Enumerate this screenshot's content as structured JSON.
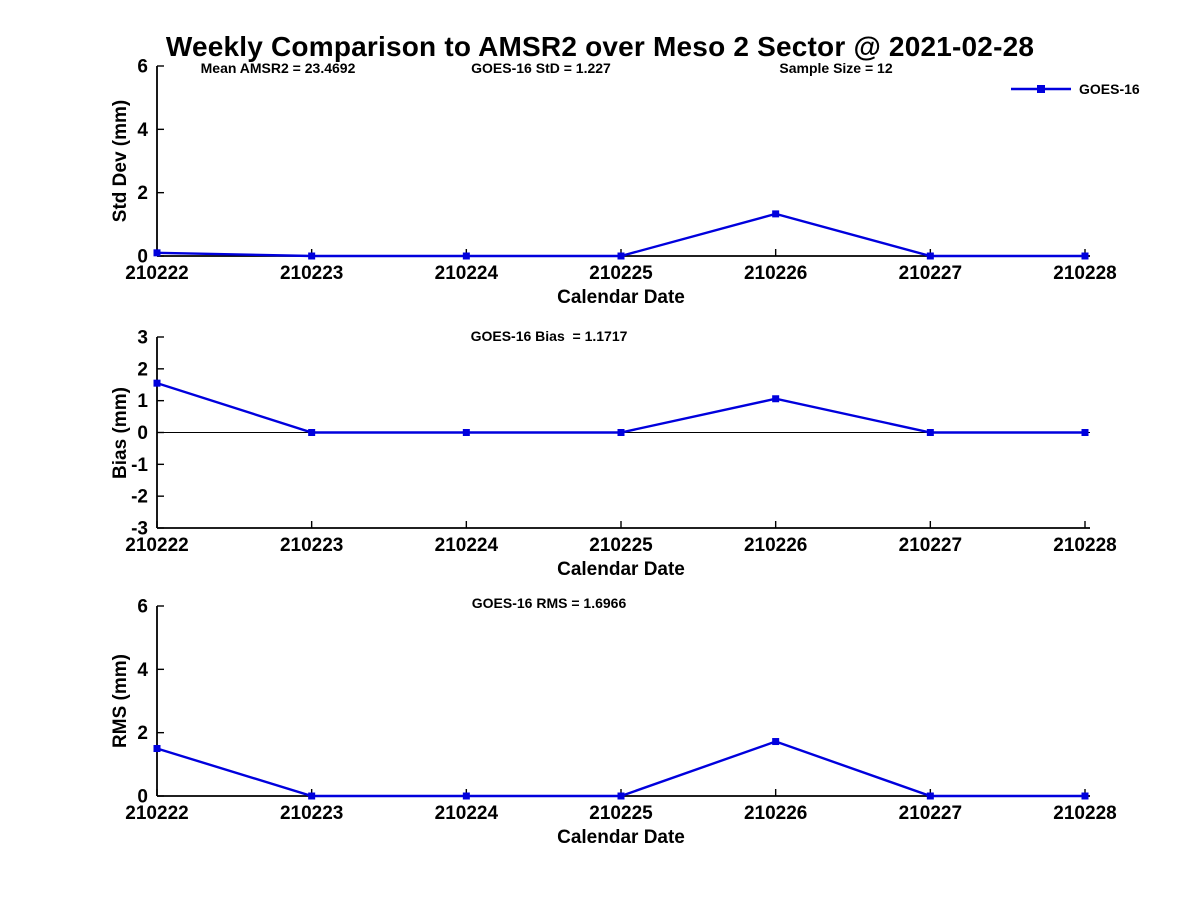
{
  "title": "Weekly Comparison to AMSR2 over Meso 2 Sector @ 2021-02-28",
  "annotations": {
    "mean_amsr2": "Mean AMSR2 = 23.4692",
    "goes16_std": "GOES-16 StD = 1.227",
    "sample_size": "Sample Size = 12",
    "goes16_bias": "GOES-16 Bias  = 1.1717",
    "goes16_rms": "GOES-16 RMS = 1.6966"
  },
  "legend": {
    "label": "GOES-16",
    "position": "top-right"
  },
  "colors": {
    "line": "#0000dd",
    "axis": "#000000",
    "text": "#000000",
    "background": "#ffffff"
  },
  "chart_data": [
    {
      "type": "line",
      "title": "",
      "categories": [
        "210222",
        "210223",
        "210224",
        "210225",
        "210226",
        "210227",
        "210228"
      ],
      "series": [
        {
          "name": "GOES-16",
          "values": [
            0.1,
            0,
            0,
            0,
            1.33,
            0,
            0
          ]
        }
      ],
      "xlabel": "Calendar Date",
      "ylabel": "Std Dev (mm)",
      "ylim": [
        0,
        6
      ],
      "yticks": [
        0,
        2,
        4,
        6
      ],
      "grid": false,
      "zero_line": false,
      "marker": "square",
      "legend_position": "top-right"
    },
    {
      "type": "line",
      "title": "",
      "categories": [
        "210222",
        "210223",
        "210224",
        "210225",
        "210226",
        "210227",
        "210228"
      ],
      "series": [
        {
          "name": "GOES-16",
          "values": [
            1.55,
            0,
            0,
            0,
            1.06,
            0,
            0
          ]
        }
      ],
      "xlabel": "Calendar Date",
      "ylabel": "Bias (mm)",
      "ylim": [
        -3,
        3
      ],
      "yticks": [
        -3,
        -2,
        -1,
        0,
        1,
        2,
        3
      ],
      "grid": false,
      "zero_line": true,
      "marker": "square"
    },
    {
      "type": "line",
      "title": "",
      "categories": [
        "210222",
        "210223",
        "210224",
        "210225",
        "210226",
        "210227",
        "210228"
      ],
      "series": [
        {
          "name": "GOES-16",
          "values": [
            1.5,
            0,
            0,
            0,
            1.72,
            0,
            0
          ]
        }
      ],
      "xlabel": "Calendar Date",
      "ylabel": "RMS (mm)",
      "ylim": [
        0,
        6
      ],
      "yticks": [
        0,
        2,
        4,
        6
      ],
      "grid": false,
      "zero_line": false,
      "marker": "square"
    }
  ]
}
